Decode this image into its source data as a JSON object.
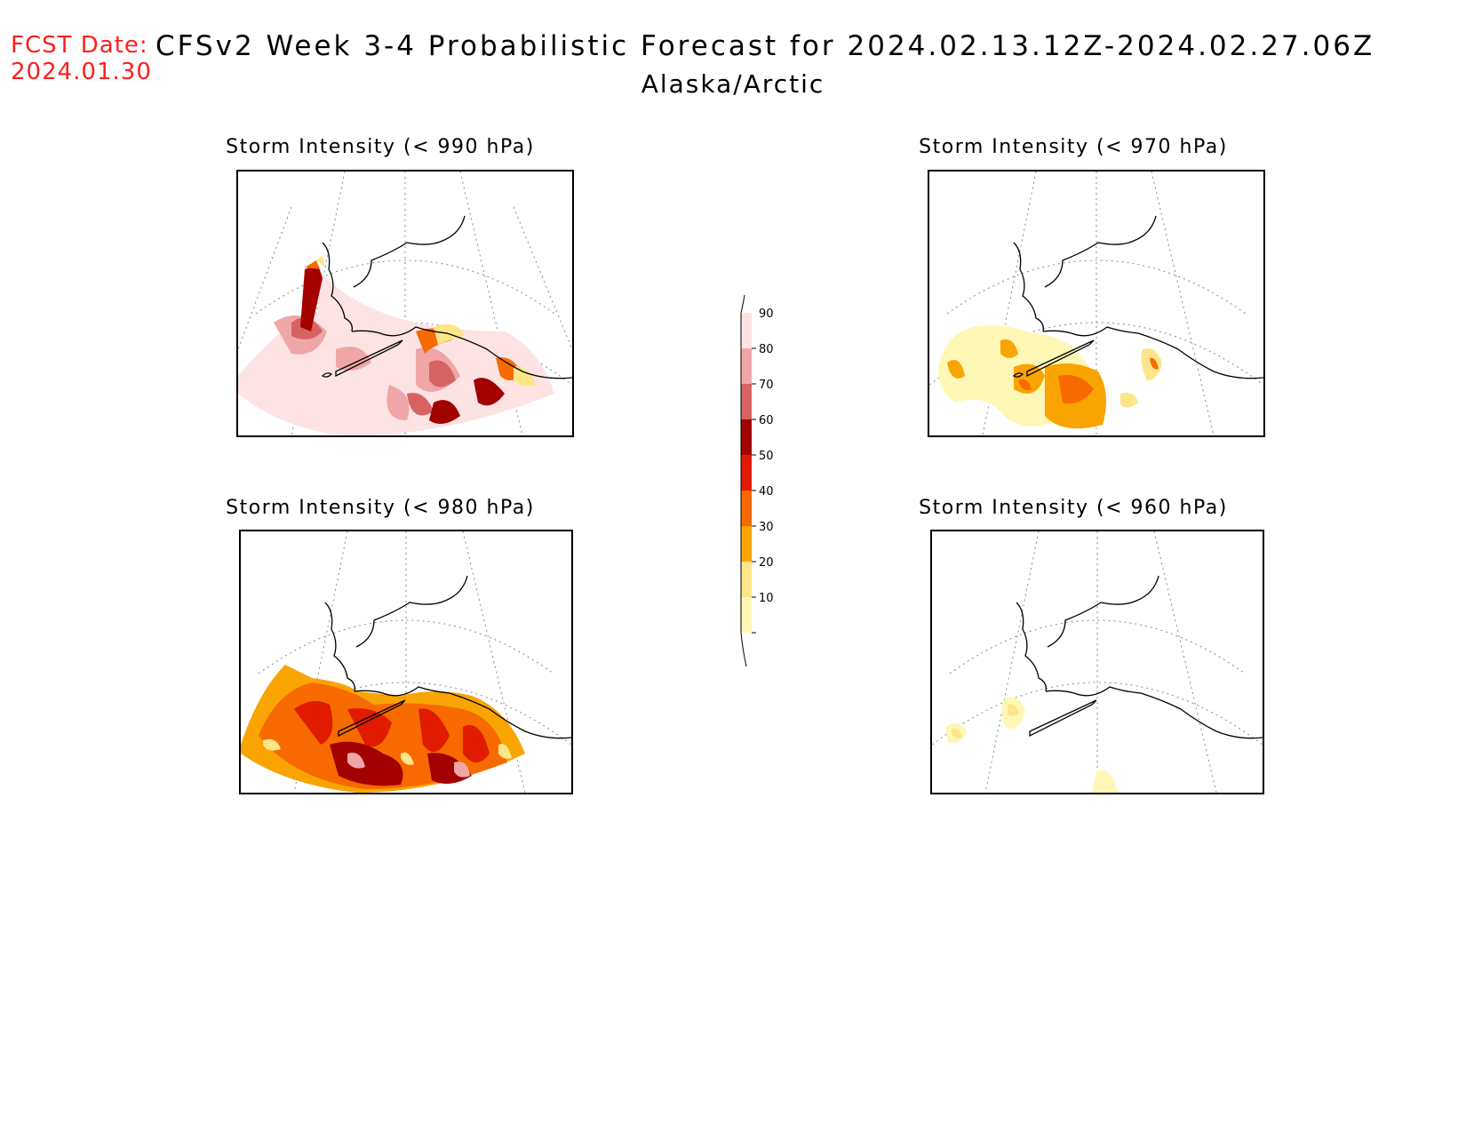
{
  "header": {
    "fcst_label": "FCST Date:",
    "fcst_date": "2024.01.30",
    "title": "CFSv2 Week 3-4 Probabilistic Forecast for 2024.02.13.12Z-2024.02.27.06Z",
    "region": "Alaska/Arctic"
  },
  "panels": [
    {
      "id": "p990",
      "title": "Storm Intensity (< 990 hPa)",
      "level": 990
    },
    {
      "id": "p970",
      "title": "Storm Intensity (< 970 hPa)",
      "level": 970
    },
    {
      "id": "p980",
      "title": "Storm Intensity (< 980 hPa)",
      "level": 980
    },
    {
      "id": "p960",
      "title": "Storm Intensity (< 960 hPa)",
      "level": 960
    }
  ],
  "colorbar": {
    "labels": [
      "10",
      "20",
      "30",
      "40",
      "50",
      "60",
      "70",
      "80",
      "90"
    ],
    "colors": [
      "#fff7b5",
      "#fde58a",
      "#f9a400",
      "#f66a00",
      "#e01b00",
      "#a30000",
      "#d76262",
      "#f0a6a6",
      "#fde3e3"
    ],
    "unit": "%"
  }
}
